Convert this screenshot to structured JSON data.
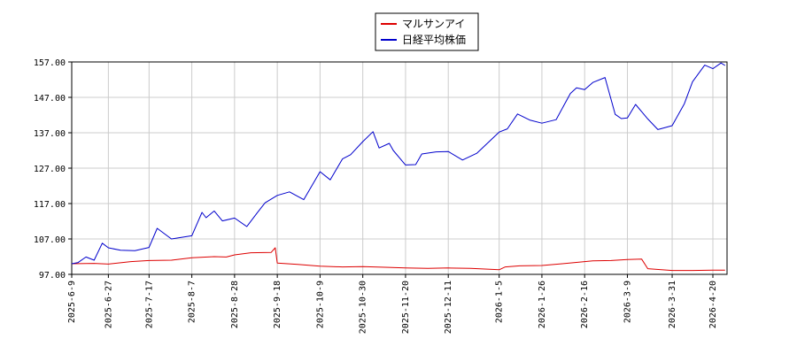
{
  "chart_data": {
    "type": "line",
    "title": "",
    "xlabel": "",
    "ylabel": "",
    "legend_position": "top-center",
    "grid": true,
    "x_ticks": [
      "2025-6-9",
      "2025-6-27",
      "2025-7-17",
      "2025-8-7",
      "2025-8-28",
      "2025-9-18",
      "2025-10-9",
      "2025-10-30",
      "2025-11-20",
      "2025-12-11",
      "2026-1-5",
      "2026-1-26",
      "2026-2-16",
      "2026-3-9",
      "2026-3-31",
      "2026-4-20"
    ],
    "y_ticks": [
      "97.00",
      "107.00",
      "117.00",
      "127.00",
      "137.00",
      "147.00",
      "157.00"
    ],
    "ylim": [
      97,
      157
    ],
    "series": [
      {
        "name": "マルサンアイ",
        "color": "#dd0000",
        "points": [
          [
            "2025-6-9",
            100.0
          ],
          [
            "2025-6-20",
            100.1
          ],
          [
            "2025-6-27",
            99.9
          ],
          [
            "2025-7-8",
            100.6
          ],
          [
            "2025-7-17",
            100.9
          ],
          [
            "2025-7-28",
            101.0
          ],
          [
            "2025-8-7",
            101.7
          ],
          [
            "2025-8-18",
            102.0
          ],
          [
            "2025-8-24",
            101.9
          ],
          [
            "2025-8-28",
            102.5
          ],
          [
            "2025-9-5",
            103.1
          ],
          [
            "2025-9-15",
            103.2
          ],
          [
            "2025-9-17",
            104.5
          ],
          [
            "2025-9-18",
            100.2
          ],
          [
            "2025-9-28",
            99.8
          ],
          [
            "2025-10-9",
            99.3
          ],
          [
            "2025-10-20",
            99.1
          ],
          [
            "2025-10-30",
            99.2
          ],
          [
            "2025-11-10",
            99.0
          ],
          [
            "2025-11-20",
            98.8
          ],
          [
            "2025-12-1",
            98.7
          ],
          [
            "2025-12-11",
            98.8
          ],
          [
            "2025-12-22",
            98.7
          ],
          [
            "2026-1-5",
            98.3
          ],
          [
            "2026-1-8",
            99.1
          ],
          [
            "2026-1-15",
            99.4
          ],
          [
            "2026-1-26",
            99.5
          ],
          [
            "2026-2-5",
            100.0
          ],
          [
            "2026-2-16",
            100.6
          ],
          [
            "2026-2-20",
            100.8
          ],
          [
            "2026-3-1",
            100.9
          ],
          [
            "2026-3-9",
            101.2
          ],
          [
            "2026-3-16",
            101.3
          ],
          [
            "2026-3-19",
            98.6
          ],
          [
            "2026-3-31",
            98.1
          ],
          [
            "2026-4-10",
            98.1
          ],
          [
            "2026-4-20",
            98.2
          ],
          [
            "2026-4-26",
            98.2
          ]
        ]
      },
      {
        "name": "日経平均株価",
        "color": "#0000cc",
        "points": [
          [
            "2025-6-9",
            100.0
          ],
          [
            "2025-6-12",
            100.3
          ],
          [
            "2025-6-16",
            101.9
          ],
          [
            "2025-6-20",
            101.0
          ],
          [
            "2025-6-24",
            105.8
          ],
          [
            "2025-6-27",
            104.5
          ],
          [
            "2025-7-3",
            103.8
          ],
          [
            "2025-7-10",
            103.7
          ],
          [
            "2025-7-17",
            104.6
          ],
          [
            "2025-7-21",
            110.0
          ],
          [
            "2025-7-28",
            107.0
          ],
          [
            "2025-8-7",
            107.9
          ],
          [
            "2025-8-12",
            114.5
          ],
          [
            "2025-8-14",
            113.0
          ],
          [
            "2025-8-18",
            114.9
          ],
          [
            "2025-8-22",
            112.1
          ],
          [
            "2025-8-28",
            112.9
          ],
          [
            "2025-9-3",
            110.5
          ],
          [
            "2025-9-8",
            114.3
          ],
          [
            "2025-9-12",
            117.2
          ],
          [
            "2025-9-18",
            119.3
          ],
          [
            "2025-9-24",
            120.3
          ],
          [
            "2025-10-1",
            118.1
          ],
          [
            "2025-10-9",
            126.0
          ],
          [
            "2025-10-14",
            123.7
          ],
          [
            "2025-10-20",
            129.6
          ],
          [
            "2025-10-24",
            130.8
          ],
          [
            "2025-10-30",
            134.5
          ],
          [
            "2025-11-4",
            137.3
          ],
          [
            "2025-11-7",
            132.7
          ],
          [
            "2025-11-12",
            134.0
          ],
          [
            "2025-11-14",
            132.0
          ],
          [
            "2025-11-20",
            127.9
          ],
          [
            "2025-11-25",
            128.0
          ],
          [
            "2025-11-28",
            131.0
          ],
          [
            "2025-12-5",
            131.6
          ],
          [
            "2025-12-11",
            131.7
          ],
          [
            "2025-12-18",
            129.3
          ],
          [
            "2025-12-25",
            131.2
          ],
          [
            "2026-1-5",
            137.2
          ],
          [
            "2026-1-9",
            138.1
          ],
          [
            "2026-1-14",
            142.3
          ],
          [
            "2026-1-20",
            140.6
          ],
          [
            "2026-1-26",
            139.7
          ],
          [
            "2026-2-2",
            140.7
          ],
          [
            "2026-2-9",
            148.1
          ],
          [
            "2026-2-12",
            149.7
          ],
          [
            "2026-2-16",
            149.2
          ],
          [
            "2026-2-20",
            151.2
          ],
          [
            "2026-2-26",
            152.6
          ],
          [
            "2026-3-3",
            142.2
          ],
          [
            "2026-3-6",
            141.0
          ],
          [
            "2026-3-9",
            141.2
          ],
          [
            "2026-3-13",
            145.0
          ],
          [
            "2026-3-19",
            140.9
          ],
          [
            "2026-3-24",
            137.9
          ],
          [
            "2026-3-31",
            139.0
          ],
          [
            "2026-4-6",
            145.2
          ],
          [
            "2026-4-10",
            151.4
          ],
          [
            "2026-4-16",
            156.1
          ],
          [
            "2026-4-20",
            155.1
          ],
          [
            "2026-4-24",
            156.7
          ],
          [
            "2026-4-26",
            156.0
          ]
        ]
      }
    ]
  }
}
